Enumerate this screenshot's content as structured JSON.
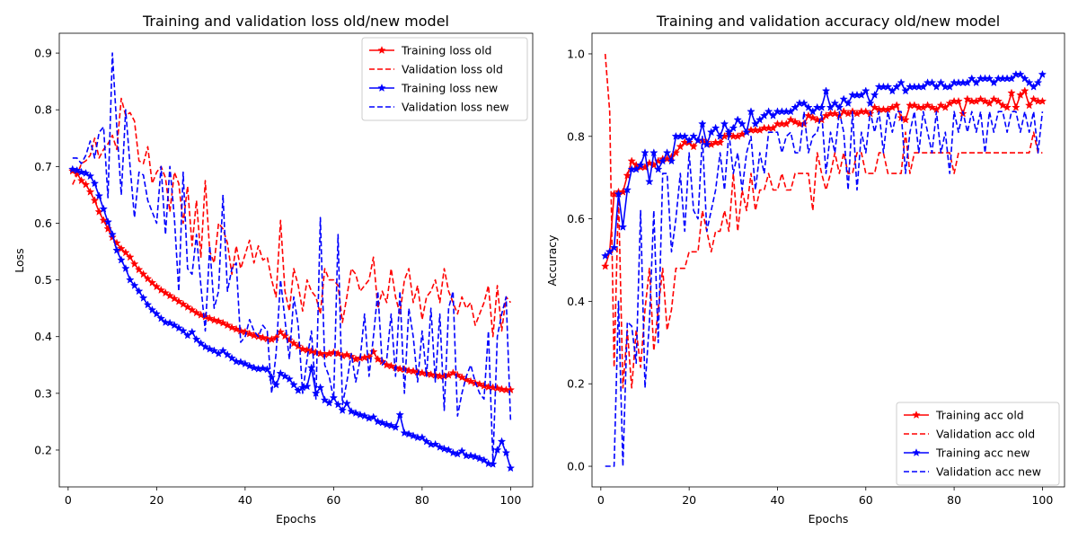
{
  "figure": {
    "background": "#ffffff"
  },
  "chart_data": [
    {
      "type": "line",
      "title": "Training and validation loss old/new model",
      "xlabel": "Epochs",
      "ylabel": "Loss",
      "xlim": [
        -2,
        105
      ],
      "ylim": [
        0.135,
        0.935
      ],
      "xticks": [
        0,
        20,
        40,
        60,
        80,
        100
      ],
      "yticks": [
        0.2,
        0.3,
        0.4,
        0.5,
        0.6,
        0.7,
        0.8,
        0.9
      ],
      "grid": false,
      "legend_position": "upper right",
      "x": [
        1,
        2,
        3,
        4,
        5,
        6,
        7,
        8,
        9,
        10,
        11,
        12,
        13,
        14,
        15,
        16,
        17,
        18,
        19,
        20,
        21,
        22,
        23,
        24,
        25,
        26,
        27,
        28,
        29,
        30,
        31,
        32,
        33,
        34,
        35,
        36,
        37,
        38,
        39,
        40,
        41,
        42,
        43,
        44,
        45,
        46,
        47,
        48,
        49,
        50,
        51,
        52,
        53,
        54,
        55,
        56,
        57,
        58,
        59,
        60,
        61,
        62,
        63,
        64,
        65,
        66,
        67,
        68,
        69,
        70,
        71,
        72,
        73,
        74,
        75,
        76,
        77,
        78,
        79,
        80,
        81,
        82,
        83,
        84,
        85,
        86,
        87,
        88,
        89,
        90,
        91,
        92,
        93,
        94,
        95,
        96,
        97,
        98,
        99,
        100
      ],
      "series": [
        {
          "name": "Training loss old",
          "color": "#ff0000",
          "style": "solid",
          "marker": "star",
          "values": [
            0.692,
            0.688,
            0.675,
            0.668,
            0.655,
            0.64,
            0.62,
            0.605,
            0.59,
            0.575,
            0.565,
            0.555,
            0.548,
            0.54,
            0.528,
            0.518,
            0.51,
            0.502,
            0.495,
            0.488,
            0.482,
            0.477,
            0.472,
            0.467,
            0.462,
            0.457,
            0.452,
            0.447,
            0.442,
            0.438,
            0.435,
            0.432,
            0.429,
            0.427,
            0.424,
            0.42,
            0.416,
            0.413,
            0.41,
            0.408,
            0.405,
            0.402,
            0.4,
            0.398,
            0.396,
            0.395,
            0.398,
            0.408,
            0.401,
            0.394,
            0.388,
            0.383,
            0.378,
            0.376,
            0.374,
            0.372,
            0.37,
            0.368,
            0.37,
            0.372,
            0.37,
            0.366,
            0.368,
            0.365,
            0.36,
            0.362,
            0.363,
            0.364,
            0.373,
            0.36,
            0.356,
            0.35,
            0.348,
            0.345,
            0.343,
            0.342,
            0.34,
            0.339,
            0.337,
            0.336,
            0.335,
            0.333,
            0.332,
            0.33,
            0.33,
            0.332,
            0.336,
            0.332,
            0.328,
            0.324,
            0.321,
            0.318,
            0.316,
            0.313,
            0.311,
            0.31,
            0.309,
            0.307,
            0.306,
            0.306
          ]
        },
        {
          "name": "Validation loss old",
          "color": "#ff0000",
          "style": "dashed",
          "marker": "none",
          "values": [
            0.668,
            0.685,
            0.705,
            0.71,
            0.72,
            0.75,
            0.715,
            0.73,
            0.74,
            0.755,
            0.73,
            0.82,
            0.79,
            0.795,
            0.78,
            0.71,
            0.705,
            0.735,
            0.67,
            0.69,
            0.7,
            0.68,
            0.62,
            0.69,
            0.67,
            0.6,
            0.665,
            0.56,
            0.64,
            0.54,
            0.675,
            0.55,
            0.53,
            0.6,
            0.59,
            0.565,
            0.51,
            0.56,
            0.52,
            0.545,
            0.57,
            0.53,
            0.56,
            0.535,
            0.54,
            0.5,
            0.47,
            0.605,
            0.48,
            0.445,
            0.52,
            0.49,
            0.445,
            0.5,
            0.48,
            0.47,
            0.44,
            0.52,
            0.5,
            0.5,
            0.49,
            0.425,
            0.47,
            0.52,
            0.51,
            0.48,
            0.49,
            0.5,
            0.54,
            0.45,
            0.48,
            0.46,
            0.52,
            0.47,
            0.44,
            0.5,
            0.52,
            0.46,
            0.49,
            0.43,
            0.47,
            0.48,
            0.5,
            0.46,
            0.52,
            0.48,
            0.46,
            0.44,
            0.47,
            0.45,
            0.46,
            0.42,
            0.44,
            0.46,
            0.49,
            0.4,
            0.49,
            0.41,
            0.47,
            0.46
          ]
        },
        {
          "name": "Training loss new",
          "color": "#0000ff",
          "style": "solid",
          "marker": "star",
          "values": [
            0.695,
            0.693,
            0.69,
            0.688,
            0.683,
            0.67,
            0.648,
            0.625,
            0.602,
            0.58,
            0.552,
            0.535,
            0.52,
            0.5,
            0.49,
            0.48,
            0.468,
            0.456,
            0.447,
            0.44,
            0.432,
            0.425,
            0.424,
            0.42,
            0.415,
            0.41,
            0.402,
            0.408,
            0.395,
            0.388,
            0.382,
            0.378,
            0.375,
            0.37,
            0.375,
            0.368,
            0.362,
            0.356,
            0.355,
            0.352,
            0.348,
            0.345,
            0.343,
            0.344,
            0.342,
            0.328,
            0.315,
            0.335,
            0.33,
            0.325,
            0.315,
            0.305,
            0.31,
            0.312,
            0.345,
            0.3,
            0.31,
            0.288,
            0.283,
            0.292,
            0.28,
            0.27,
            0.282,
            0.268,
            0.265,
            0.262,
            0.26,
            0.256,
            0.258,
            0.25,
            0.248,
            0.245,
            0.243,
            0.24,
            0.262,
            0.23,
            0.228,
            0.225,
            0.222,
            0.222,
            0.215,
            0.21,
            0.21,
            0.205,
            0.202,
            0.2,
            0.195,
            0.193,
            0.198,
            0.19,
            0.19,
            0.188,
            0.185,
            0.182,
            0.176,
            0.175,
            0.2,
            0.215,
            0.195,
            0.168
          ]
        },
        {
          "name": "Validation loss new",
          "color": "#0000ff",
          "style": "dashed",
          "marker": "none",
          "values": [
            0.715,
            0.715,
            0.705,
            0.72,
            0.745,
            0.715,
            0.76,
            0.77,
            0.645,
            0.9,
            0.77,
            0.65,
            0.8,
            0.7,
            0.61,
            0.69,
            0.685,
            0.64,
            0.62,
            0.6,
            0.7,
            0.58,
            0.7,
            0.61,
            0.48,
            0.69,
            0.52,
            0.51,
            0.58,
            0.49,
            0.41,
            0.56,
            0.45,
            0.48,
            0.65,
            0.48,
            0.52,
            0.53,
            0.39,
            0.4,
            0.43,
            0.41,
            0.4,
            0.42,
            0.41,
            0.3,
            0.37,
            0.5,
            0.43,
            0.36,
            0.47,
            0.42,
            0.3,
            0.36,
            0.41,
            0.29,
            0.61,
            0.35,
            0.33,
            0.29,
            0.58,
            0.28,
            0.32,
            0.37,
            0.32,
            0.36,
            0.44,
            0.33,
            0.4,
            0.48,
            0.35,
            0.36,
            0.44,
            0.33,
            0.48,
            0.3,
            0.45,
            0.4,
            0.32,
            0.41,
            0.33,
            0.45,
            0.32,
            0.44,
            0.27,
            0.45,
            0.48,
            0.26,
            0.3,
            0.33,
            0.35,
            0.32,
            0.3,
            0.29,
            0.41,
            0.18,
            0.4,
            0.44,
            0.47,
            0.25
          ]
        }
      ]
    },
    {
      "type": "line",
      "title": "Training and validation accuracy old/new model",
      "xlabel": "Epochs",
      "ylabel": "Accuracy",
      "xlim": [
        -2,
        105
      ],
      "ylim": [
        -0.05,
        1.05
      ],
      "xticks": [
        0,
        20,
        40,
        60,
        80,
        100
      ],
      "yticks": [
        0.0,
        0.2,
        0.4,
        0.6,
        0.8,
        1.0
      ],
      "ytick_labels": [
        "0.0",
        "0.2",
        "0.4",
        "0.6",
        "0.8",
        "1.0"
      ],
      "grid": false,
      "legend_position": "lower right",
      "x": [
        1,
        2,
        3,
        4,
        5,
        6,
        7,
        8,
        9,
        10,
        11,
        12,
        13,
        14,
        15,
        16,
        17,
        18,
        19,
        20,
        21,
        22,
        23,
        24,
        25,
        26,
        27,
        28,
        29,
        30,
        31,
        32,
        33,
        34,
        35,
        36,
        37,
        38,
        39,
        40,
        41,
        42,
        43,
        44,
        45,
        46,
        47,
        48,
        49,
        50,
        51,
        52,
        53,
        54,
        55,
        56,
        57,
        58,
        59,
        60,
        61,
        62,
        63,
        64,
        65,
        66,
        67,
        68,
        69,
        70,
        71,
        72,
        73,
        74,
        75,
        76,
        77,
        78,
        79,
        80,
        81,
        82,
        83,
        84,
        85,
        86,
        87,
        88,
        89,
        90,
        91,
        92,
        93,
        94,
        95,
        96,
        97,
        98,
        99,
        100
      ],
      "series": [
        {
          "name": "Training acc old",
          "color": "#ff0000",
          "style": "solid",
          "marker": "star",
          "values": [
            0.485,
            0.52,
            0.66,
            0.665,
            0.665,
            0.705,
            0.74,
            0.73,
            0.725,
            0.725,
            0.735,
            0.73,
            0.74,
            0.745,
            0.745,
            0.75,
            0.76,
            0.775,
            0.785,
            0.785,
            0.775,
            0.79,
            0.79,
            0.785,
            0.78,
            0.785,
            0.785,
            0.8,
            0.805,
            0.8,
            0.8,
            0.805,
            0.81,
            0.815,
            0.815,
            0.815,
            0.82,
            0.82,
            0.82,
            0.83,
            0.83,
            0.83,
            0.84,
            0.835,
            0.83,
            0.83,
            0.85,
            0.845,
            0.84,
            0.84,
            0.85,
            0.855,
            0.855,
            0.85,
            0.86,
            0.855,
            0.86,
            0.855,
            0.86,
            0.86,
            0.855,
            0.87,
            0.865,
            0.865,
            0.865,
            0.87,
            0.875,
            0.845,
            0.84,
            0.875,
            0.875,
            0.87,
            0.87,
            0.875,
            0.87,
            0.865,
            0.875,
            0.87,
            0.88,
            0.885,
            0.885,
            0.855,
            0.89,
            0.885,
            0.885,
            0.89,
            0.885,
            0.88,
            0.89,
            0.885,
            0.875,
            0.87,
            0.905,
            0.87,
            0.9,
            0.91,
            0.875,
            0.89,
            0.885,
            0.885
          ]
        },
        {
          "name": "Validation acc old",
          "color": "#ff0000",
          "style": "dashed",
          "marker": "none",
          "values": [
            1.0,
            0.86,
            0.24,
            0.66,
            0.19,
            0.33,
            0.19,
            0.33,
            0.24,
            0.38,
            0.48,
            0.28,
            0.38,
            0.48,
            0.33,
            0.38,
            0.48,
            0.48,
            0.48,
            0.52,
            0.52,
            0.52,
            0.62,
            0.57,
            0.52,
            0.57,
            0.57,
            0.62,
            0.57,
            0.71,
            0.57,
            0.67,
            0.62,
            0.71,
            0.62,
            0.67,
            0.67,
            0.71,
            0.67,
            0.67,
            0.71,
            0.67,
            0.67,
            0.71,
            0.71,
            0.71,
            0.71,
            0.62,
            0.76,
            0.71,
            0.67,
            0.71,
            0.76,
            0.71,
            0.76,
            0.71,
            0.71,
            0.76,
            0.76,
            0.71,
            0.71,
            0.71,
            0.76,
            0.76,
            0.71,
            0.71,
            0.71,
            0.71,
            0.81,
            0.71,
            0.76,
            0.76,
            0.76,
            0.76,
            0.76,
            0.76,
            0.76,
            0.76,
            0.76,
            0.71,
            0.76,
            0.76,
            0.76,
            0.76,
            0.76,
            0.76,
            0.76,
            0.76,
            0.76,
            0.76,
            0.76,
            0.76,
            0.76,
            0.76,
            0.76,
            0.76,
            0.76,
            0.81,
            0.76,
            0.76
          ]
        },
        {
          "name": "Training acc new",
          "color": "#0000ff",
          "style": "solid",
          "marker": "star",
          "values": [
            0.51,
            0.52,
            0.53,
            0.66,
            0.58,
            0.67,
            0.72,
            0.72,
            0.73,
            0.76,
            0.69,
            0.76,
            0.72,
            0.74,
            0.76,
            0.74,
            0.8,
            0.8,
            0.8,
            0.79,
            0.8,
            0.79,
            0.83,
            0.78,
            0.81,
            0.82,
            0.8,
            0.83,
            0.81,
            0.82,
            0.84,
            0.83,
            0.81,
            0.86,
            0.83,
            0.84,
            0.85,
            0.86,
            0.85,
            0.86,
            0.86,
            0.86,
            0.86,
            0.87,
            0.88,
            0.88,
            0.87,
            0.86,
            0.87,
            0.87,
            0.91,
            0.87,
            0.88,
            0.87,
            0.89,
            0.88,
            0.9,
            0.9,
            0.9,
            0.91,
            0.88,
            0.9,
            0.92,
            0.92,
            0.92,
            0.91,
            0.92,
            0.93,
            0.91,
            0.92,
            0.92,
            0.92,
            0.92,
            0.93,
            0.93,
            0.92,
            0.93,
            0.92,
            0.92,
            0.93,
            0.93,
            0.93,
            0.93,
            0.94,
            0.93,
            0.94,
            0.94,
            0.94,
            0.93,
            0.94,
            0.94,
            0.94,
            0.94,
            0.95,
            0.95,
            0.94,
            0.93,
            0.92,
            0.93,
            0.95
          ]
        },
        {
          "name": "Validation acc new",
          "color": "#0000ff",
          "style": "dashed",
          "marker": "none",
          "values": [
            0.0,
            0.0,
            0.0,
            0.4,
            0.0,
            0.35,
            0.34,
            0.25,
            0.62,
            0.19,
            0.35,
            0.62,
            0.3,
            0.71,
            0.71,
            0.52,
            0.6,
            0.71,
            0.57,
            0.76,
            0.62,
            0.6,
            0.8,
            0.57,
            0.62,
            0.67,
            0.76,
            0.67,
            0.81,
            0.71,
            0.76,
            0.67,
            0.76,
            0.8,
            0.67,
            0.76,
            0.71,
            0.81,
            0.81,
            0.81,
            0.76,
            0.8,
            0.81,
            0.76,
            0.76,
            0.86,
            0.76,
            0.8,
            0.81,
            0.86,
            0.71,
            0.81,
            0.76,
            0.86,
            0.81,
            0.67,
            0.86,
            0.67,
            0.81,
            0.76,
            0.86,
            0.81,
            0.86,
            0.76,
            0.86,
            0.81,
            0.86,
            0.86,
            0.71,
            0.81,
            0.86,
            0.76,
            0.86,
            0.81,
            0.76,
            0.86,
            0.76,
            0.81,
            0.71,
            0.86,
            0.81,
            0.86,
            0.81,
            0.86,
            0.81,
            0.86,
            0.76,
            0.86,
            0.81,
            0.86,
            0.86,
            0.81,
            0.86,
            0.86,
            0.81,
            0.86,
            0.81,
            0.86,
            0.76,
            0.86
          ]
        }
      ]
    }
  ]
}
